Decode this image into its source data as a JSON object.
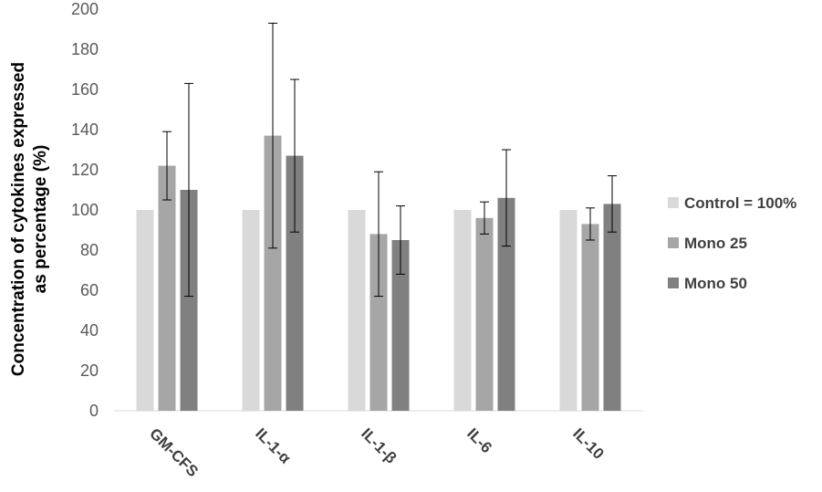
{
  "chart_data": {
    "type": "bar",
    "title": "",
    "xlabel": "",
    "ylabel_lines": [
      "Concentration of cytokines expressed",
      "as percentage (%)"
    ],
    "ylim": [
      0,
      200
    ],
    "yticks": [
      0,
      20,
      40,
      60,
      80,
      100,
      120,
      140,
      160,
      180,
      200
    ],
    "grid": false,
    "legend_position": "right",
    "categories": [
      "GM-CFS",
      "IL-1-α",
      "IL-1-β",
      "IL-6",
      "IL-10"
    ],
    "series": [
      {
        "name": "Control = 100%",
        "color": "#d9d9d9",
        "values": [
          100,
          100,
          100,
          100,
          100
        ],
        "errors": null
      },
      {
        "name": "Mono 25",
        "color": "#a6a6a6",
        "values": [
          122,
          137,
          88,
          96,
          93
        ],
        "errors": [
          [
            105,
            139
          ],
          [
            81,
            193
          ],
          [
            57,
            119
          ],
          [
            88,
            104
          ],
          [
            85,
            101
          ]
        ]
      },
      {
        "name": "Mono 50",
        "color": "#808080",
        "values": [
          110,
          127,
          85,
          106,
          103
        ],
        "errors": [
          [
            57,
            163
          ],
          [
            89,
            165
          ],
          [
            68,
            102
          ],
          [
            82,
            130
          ],
          [
            89,
            117
          ]
        ]
      }
    ]
  }
}
